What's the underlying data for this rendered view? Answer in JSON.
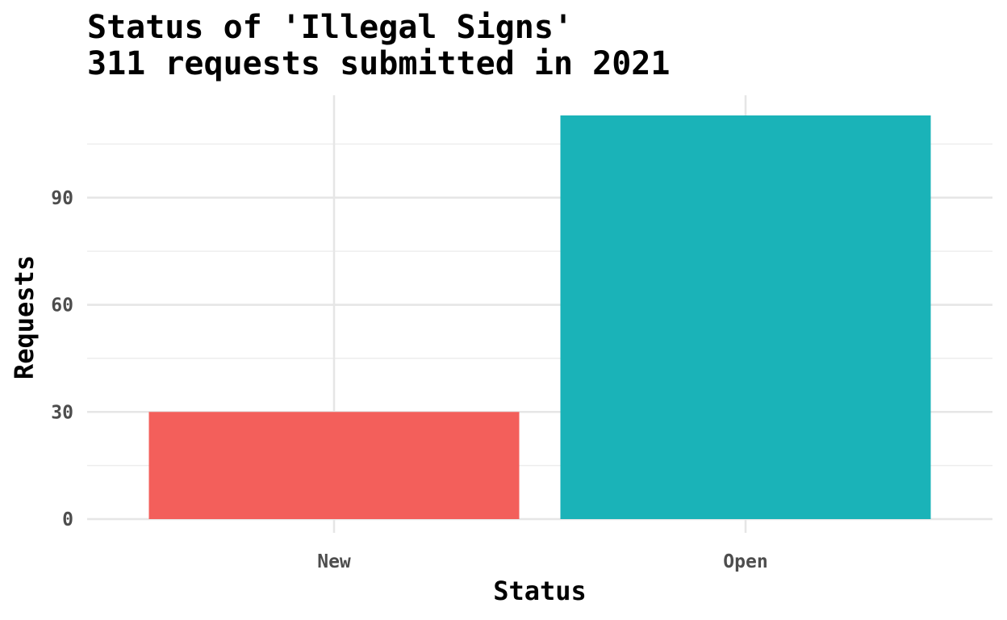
{
  "chart_data": {
    "type": "bar",
    "title_lines": [
      "Status of 'Illegal Signs'",
      "311 requests submitted in 2021"
    ],
    "xlabel": "Status",
    "ylabel": "Requests",
    "categories": [
      "New",
      "Open"
    ],
    "values": [
      30,
      113
    ],
    "colors": [
      "#F35F5B",
      "#1AB3B8"
    ],
    "ylim": [
      0,
      113
    ],
    "y_ticks": [
      0,
      30,
      60,
      90
    ],
    "y_minor_ticks": [
      15,
      45,
      75,
      105
    ],
    "grid": true,
    "legend": "none"
  }
}
